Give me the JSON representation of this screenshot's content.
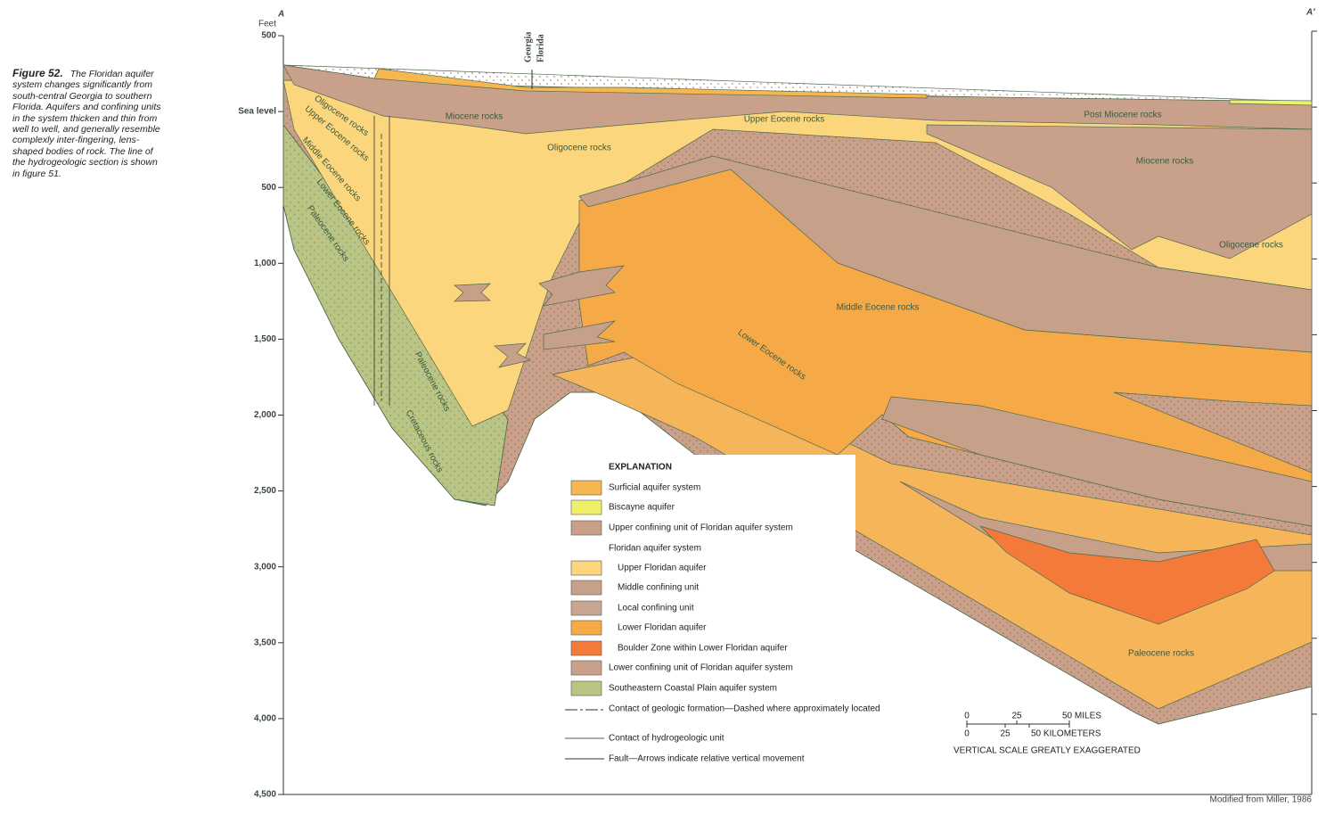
{
  "caption": {
    "figure": "Figure 52.",
    "text": "The Floridan aquifer system changes significantly from south-central Georgia to southern Florida. Aquifers and confining units in the system thicken and thin from well to well, and generally resemble complexly inter-fingering, lens-shaped bodies of rock. The line of the hydrogeologic section is shown in figure 51."
  },
  "axis": {
    "unit": "Feet",
    "ticks": [
      "500",
      "Sea level",
      "500",
      "1,000",
      "1,500",
      "2,000",
      "2,500",
      "3,000",
      "3,500",
      "4,000",
      "4,500"
    ]
  },
  "section_ends": [
    "A",
    "A′"
  ],
  "state_line": [
    "Georgia",
    "Florida"
  ],
  "rock_labels": [
    "Miocene rocks",
    "Upper Eocene rocks",
    "Post Miocene rocks",
    "Oligocene rocks",
    "Miocene rocks",
    "Oligocene rocks",
    "Middle Eocene rocks",
    "Lower Eocene rocks",
    "Oligocene rocks",
    "Upper Eocene rocks",
    "Middle Eocene rocks",
    "Lower Eocene rocks",
    "Paleocene rocks",
    "Paleocene rocks",
    "Cretaceous rocks",
    "Paleocene rocks"
  ],
  "explanation": {
    "title": "EXPLANATION",
    "items": [
      "Surficial aquifer system",
      "Biscayne aquifer",
      "Upper confining unit of Floridan aquifer system",
      "Floridan aquifer system",
      "Upper Floridan aquifer",
      "Middle confining unit",
      "Local confining unit",
      "Lower Floridan aquifer",
      "Boulder Zone within Lower Floridan aquifer",
      "Lower confining unit of Floridan aquifer system",
      "Southeastern Coastal Plain aquifer system"
    ],
    "lines": [
      "Contact of geologic formation—Dashed where approximately located",
      "Contact of hydrogeologic unit",
      "Fault—Arrows indicate relative vertical movement"
    ]
  },
  "scale": {
    "miles": [
      "0",
      "25",
      "50 MILES"
    ],
    "kilometers": [
      "0",
      "25",
      "50 KILOMETERS"
    ],
    "note": "VERTICAL SCALE GREATLY EXAGGERATED"
  },
  "credit": "Modified from Miller, 1986"
}
